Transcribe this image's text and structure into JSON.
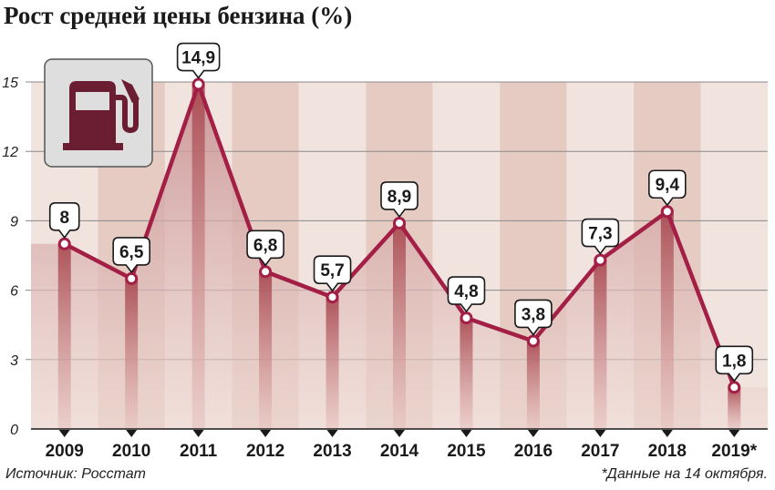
{
  "chart_data": {
    "type": "line",
    "title": "Рост средней цены бензина (%)",
    "categories": [
      "2009",
      "2010",
      "2011",
      "2012",
      "2013",
      "2014",
      "2015",
      "2016",
      "2017",
      "2018",
      "2019*"
    ],
    "series": [
      {
        "values": [
          8,
          6.5,
          14.9,
          6.8,
          5.7,
          8.9,
          4.8,
          3.8,
          7.3,
          9.4,
          1.8
        ]
      }
    ],
    "data_labels": [
      "8",
      "6,5",
      "14,9",
      "6,8",
      "5,7",
      "8,9",
      "4,8",
      "3,8",
      "7,3",
      "9,4",
      "1,8"
    ],
    "y_ticks": [
      0,
      3,
      6,
      9,
      12,
      15
    ],
    "ylim": [
      0,
      15
    ],
    "source": "Источник: Росстат",
    "footnote": "*Данные на 14 октября.",
    "icon": "fuel-pump-icon",
    "colors": {
      "line": "#a31f46",
      "marker_fill": "#ffffff",
      "column_light": "#f1e3de",
      "column_dark": "#e5cbc2",
      "icon_fill": "#6b1d32",
      "icon_bg": "#dedede"
    }
  }
}
